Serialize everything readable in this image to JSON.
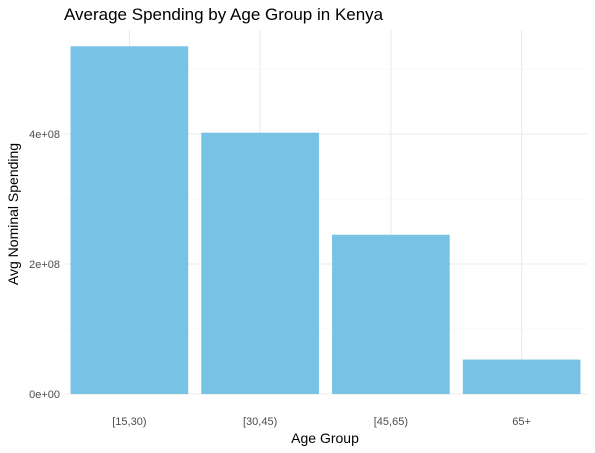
{
  "chart_data": {
    "type": "bar",
    "title": "Average Spending by Age Group in Kenya",
    "xlabel": "Age Group",
    "ylabel": "Avg Nominal Spending",
    "categories": [
      "[15,30)",
      "[30,45)",
      "[45,65)",
      "65+"
    ],
    "values": [
      535000000,
      402000000,
      245000000,
      53000000
    ],
    "ylim": [
      0,
      560000000
    ],
    "yticks": [
      0,
      200000000,
      400000000
    ],
    "ytick_labels": [
      "0e+00",
      "2e+08",
      "4e+08"
    ],
    "grid": true,
    "legend": "none",
    "colors": {
      "bar": "#78c3e5",
      "grid": "#ebebeb",
      "text": "#000000",
      "tick_text": "#4d4d4d"
    }
  }
}
